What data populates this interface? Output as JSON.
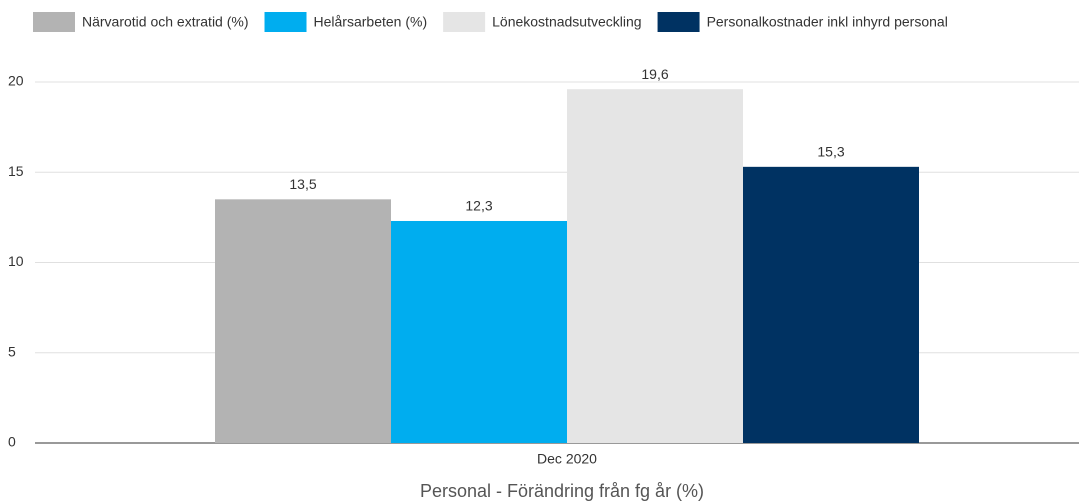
{
  "chart_data": {
    "type": "bar",
    "x_label": "Personal - Förändring från fg år (%)",
    "categories": [
      "Dec 2020"
    ],
    "series": [
      {
        "name": "Närvarotid och extratid (%)",
        "color": "#b3b3b3",
        "values": [
          13.5
        ],
        "value_labels": [
          "13,5"
        ]
      },
      {
        "name": "Helårsarbeten (%)",
        "color": "#00adef",
        "values": [
          12.3
        ],
        "value_labels": [
          "12,3"
        ]
      },
      {
        "name": "Lönekostnadsutveckling",
        "color": "#e5e5e5",
        "values": [
          19.6
        ],
        "value_labels": [
          "19,6"
        ]
      },
      {
        "name": "Personalkostnader inkl inhyrd personal",
        "color": "#003262",
        "values": [
          15.3
        ],
        "value_labels": [
          "15,3"
        ]
      }
    ],
    "ylim": [
      0,
      20
    ],
    "yticks": [
      0,
      5,
      10,
      15,
      20
    ],
    "grid": true,
    "legend": "top"
  }
}
